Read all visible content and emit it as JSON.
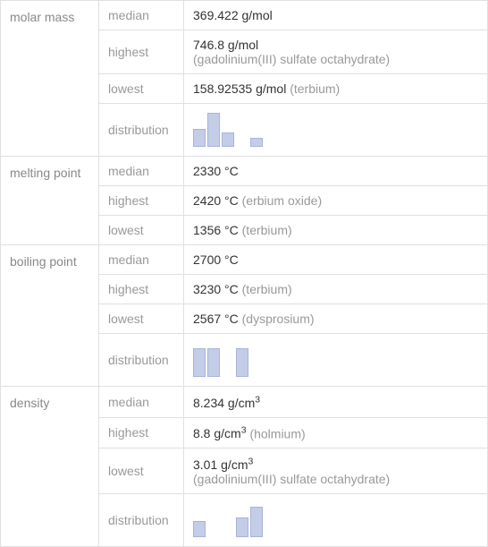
{
  "properties": [
    {
      "name": "molar mass",
      "rows": [
        {
          "stat": "median",
          "value": "369.422 g/mol",
          "note": ""
        },
        {
          "stat": "highest",
          "value": "746.8 g/mol",
          "note": "(gadolinium(III) sulfate octahydrate)",
          "twoLine": true
        },
        {
          "stat": "lowest",
          "value": "158.92535 g/mol",
          "note": "(terbium)"
        },
        {
          "stat": "distribution",
          "chart": [
            20,
            38,
            16,
            0,
            10
          ]
        }
      ]
    },
    {
      "name": "melting point",
      "rows": [
        {
          "stat": "median",
          "value": "2330 °C",
          "note": ""
        },
        {
          "stat": "highest",
          "value": "2420 °C",
          "note": "(erbium oxide)"
        },
        {
          "stat": "lowest",
          "value": "1356 °C",
          "note": "(terbium)"
        }
      ]
    },
    {
      "name": "boiling point",
      "rows": [
        {
          "stat": "median",
          "value": "2700 °C",
          "note": ""
        },
        {
          "stat": "highest",
          "value": "3230 °C",
          "note": "(terbium)"
        },
        {
          "stat": "lowest",
          "value": "2567 °C",
          "note": "(dysprosium)"
        },
        {
          "stat": "distribution",
          "chart": [
            32,
            32,
            0,
            32
          ]
        }
      ]
    },
    {
      "name": "density",
      "rows": [
        {
          "stat": "median",
          "value": "8.234 g/cm",
          "sup": "3",
          "note": ""
        },
        {
          "stat": "highest",
          "value": "8.8 g/cm",
          "sup": "3",
          "note": "(holmium)"
        },
        {
          "stat": "lowest",
          "value": "3.01 g/cm",
          "sup": "3",
          "note": "(gadolinium(III) sulfate octahydrate)",
          "twoLine": true
        },
        {
          "stat": "distribution",
          "chart": [
            18,
            0,
            0,
            22,
            34
          ]
        }
      ]
    }
  ],
  "chart_colors": {
    "bar_fill": "#c4cde8",
    "bar_border": "#a8b4d8"
  }
}
